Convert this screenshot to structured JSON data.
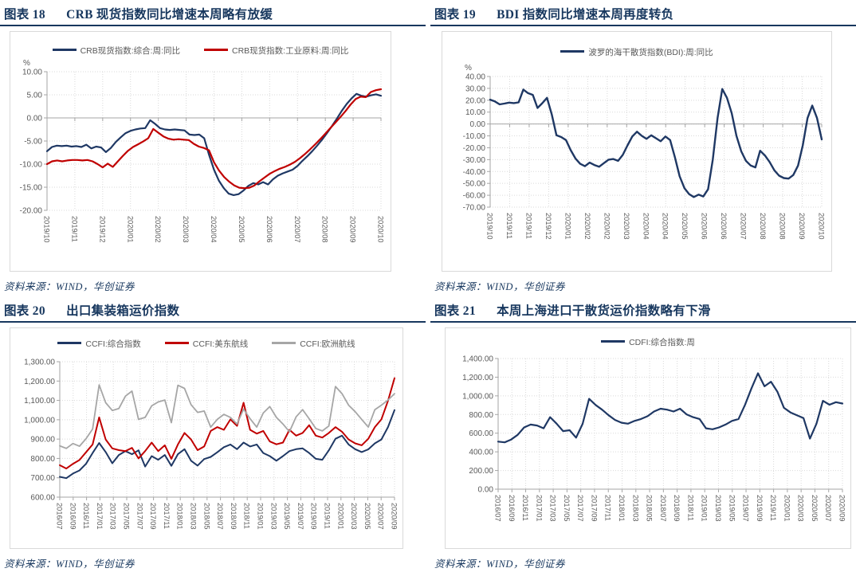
{
  "colors": {
    "navy": "#1f3864",
    "red": "#c00000",
    "gray": "#a6a6a6",
    "title": "#17375e",
    "axis_text": "#595959",
    "grid": "#d9d9d9",
    "box_border": "#d9d9d9"
  },
  "chart_data": [
    {
      "type": "line",
      "figure_label": "图表 18",
      "caption": "CRB 现货指数同比增速本周略有放缓",
      "source": "资料来源：WIND，华创证券",
      "unit": "%",
      "ylim": [
        -20,
        10
      ],
      "zero_axis": true,
      "grid": true,
      "legend_position": "top",
      "ytick_vals": [
        10,
        5,
        0,
        -5,
        -10,
        -15,
        -20
      ],
      "ytick_labels": [
        "10.00",
        "5.00",
        "0.00",
        "-5.00",
        "-10.00",
        "-15.00",
        "-20.00"
      ],
      "xticks": [
        "2019/10",
        "2019/11",
        "2019/12",
        "2020/01",
        "2020/02",
        "2020/03",
        "2020/04",
        "2020/05",
        "2020/06",
        "2020/07",
        "2020/08",
        "2020/09",
        "2020/10"
      ],
      "series": [
        {
          "name": "CRB现货指数:综合:周:同比",
          "color": "navy",
          "values": [
            -7.2,
            -6.3,
            -6.0,
            -6.1,
            -6.0,
            -6.2,
            -6.1,
            -6.3,
            -5.8,
            -6.6,
            -6.2,
            -6.4,
            -7.4,
            -6.5,
            -5.2,
            -4.2,
            -3.3,
            -2.8,
            -2.5,
            -2.3,
            -2.2,
            -0.5,
            -1.3,
            -2.2,
            -2.5,
            -2.6,
            -2.5,
            -2.6,
            -2.7,
            -3.6,
            -3.7,
            -3.6,
            -4.4,
            -8.0,
            -11.2,
            -13.6,
            -15.2,
            -16.4,
            -16.7,
            -16.5,
            -15.7,
            -14.7,
            -14.1,
            -14.4,
            -13.9,
            -14.4,
            -13.3,
            -12.5,
            -12.0,
            -11.6,
            -11.2,
            -10.4,
            -9.3,
            -8.3,
            -7.2,
            -6.0,
            -4.7,
            -3.3,
            -1.8,
            -0.2,
            1.5,
            3.0,
            4.2,
            5.2,
            4.8,
            4.6,
            4.9,
            5.1,
            4.8
          ]
        },
        {
          "name": "CRB现货指数:工业原料:周:同比",
          "color": "red",
          "values": [
            -10.0,
            -9.4,
            -9.2,
            -9.4,
            -9.2,
            -9.1,
            -9.1,
            -9.2,
            -9.1,
            -9.4,
            -10.0,
            -10.7,
            -9.9,
            -10.6,
            -9.4,
            -8.2,
            -7.1,
            -6.3,
            -5.7,
            -5.1,
            -4.4,
            -2.4,
            -3.2,
            -4.0,
            -4.5,
            -4.7,
            -4.6,
            -4.7,
            -4.8,
            -5.6,
            -6.2,
            -6.5,
            -7.0,
            -9.6,
            -11.4,
            -12.8,
            -13.8,
            -14.6,
            -15.1,
            -15.2,
            -15.1,
            -14.6,
            -13.7,
            -12.9,
            -12.1,
            -11.5,
            -11.0,
            -10.6,
            -10.1,
            -9.5,
            -8.7,
            -7.8,
            -6.8,
            -5.7,
            -4.6,
            -3.4,
            -2.2,
            -1.0,
            0.2,
            1.5,
            2.9,
            4.1,
            4.6,
            4.5,
            5.6,
            6.0,
            6.2
          ]
        }
      ]
    },
    {
      "type": "line",
      "figure_label": "图表 19",
      "caption": "BDI 指数同比增速本周再度转负",
      "source": "资料来源：WIND，华创证券",
      "unit": "%",
      "ylim": [
        -70,
        40
      ],
      "zero_axis": true,
      "grid": true,
      "legend_position": "top",
      "ytick_vals": [
        40,
        30,
        20,
        10,
        0,
        -10,
        -20,
        -30,
        -40,
        -50,
        -60,
        -70
      ],
      "ytick_labels": [
        "40.00",
        "30.00",
        "20.00",
        "10.00",
        "0.00",
        "-10.00",
        "-20.00",
        "-30.00",
        "-40.00",
        "-50.00",
        "-60.00",
        "-70.00"
      ],
      "xticks": [
        "2019/10",
        "2019/11",
        "2019/11",
        "2019/12",
        "2020/01",
        "2020/02",
        "2020/02",
        "2020/03",
        "2020/04",
        "2020/04",
        "2020/05",
        "2020/06",
        "2020/06",
        "2020/07",
        "2020/08",
        "2020/08",
        "2020/09",
        "2020/10"
      ],
      "series": [
        {
          "name": "波罗的海干散货指数(BDI):周:同比",
          "color": "navy",
          "values": [
            20.5,
            19.0,
            16.5,
            17.2,
            18.0,
            17.6,
            18.2,
            29.0,
            26.0,
            24.5,
            13.5,
            17.5,
            22.0,
            8.0,
            -9.5,
            -11.0,
            -13.5,
            -22.0,
            -29.0,
            -33.5,
            -35.5,
            -32.5,
            -34.5,
            -36.0,
            -33.0,
            -30.0,
            -29.5,
            -31.0,
            -26.0,
            -18.0,
            -10.5,
            -6.5,
            -10.0,
            -12.5,
            -9.5,
            -12.0,
            -14.5,
            -10.5,
            -13.5,
            -28.0,
            -44.0,
            -54.0,
            -59.0,
            -61.5,
            -59.5,
            -61.0,
            -55.0,
            -30.0,
            5.0,
            29.5,
            22.0,
            9.0,
            -10.0,
            -23.0,
            -31.0,
            -35.0,
            -36.5,
            -22.5,
            -26.5,
            -32.0,
            -39.0,
            -43.5,
            -45.5,
            -46.0,
            -43.0,
            -35.0,
            -18.0,
            5.0,
            15.5,
            5.0,
            -13.0
          ]
        }
      ]
    },
    {
      "type": "line",
      "figure_label": "图表 20",
      "caption": "出口集装箱运价指数",
      "source": "资料来源：WIND，华创证券",
      "unit": "",
      "ylim": [
        600,
        1300
      ],
      "zero_axis": false,
      "grid": true,
      "legend_position": "top",
      "ytick_vals": [
        1300,
        1200,
        1100,
        1000,
        900,
        800,
        700,
        600
      ],
      "ytick_labels": [
        "1,300.00",
        "1,200.00",
        "1,100.00",
        "1,000.00",
        "900.00",
        "800.00",
        "700.00",
        "600.00"
      ],
      "xticks": [
        "2016/07",
        "2016/09",
        "2016/11",
        "2017/01",
        "2017/03",
        "2017/05",
        "2017/07",
        "2017/09",
        "2017/11",
        "2018/01",
        "2018/03",
        "2018/05",
        "2018/07",
        "2018/09",
        "2018/11",
        "2019/01",
        "2019/03",
        "2019/05",
        "2019/07",
        "2019/09",
        "2019/11",
        "2020/01",
        "2020/03",
        "2020/05",
        "2020/07",
        "2020/09"
      ],
      "series": [
        {
          "name": "CCFI:综合指数",
          "color": "navy",
          "values": [
            705,
            698,
            722,
            738,
            772,
            828,
            880,
            833,
            775,
            818,
            838,
            822,
            842,
            758,
            812,
            793,
            818,
            762,
            822,
            848,
            788,
            763,
            797,
            808,
            832,
            858,
            872,
            848,
            882,
            862,
            872,
            828,
            812,
            788,
            812,
            838,
            848,
            852,
            828,
            798,
            793,
            842,
            902,
            918,
            872,
            848,
            833,
            847,
            878,
            898,
            962,
            1050
          ]
        },
        {
          "name": "CCFI:美东航线",
          "color": "red",
          "values": [
            765,
            748,
            772,
            792,
            832,
            872,
            1012,
            898,
            852,
            843,
            838,
            855,
            800,
            838,
            882,
            838,
            868,
            798,
            872,
            932,
            898,
            843,
            862,
            942,
            962,
            948,
            1002,
            968,
            1088,
            948,
            928,
            942,
            888,
            873,
            882,
            948,
            918,
            932,
            972,
            918,
            908,
            932,
            962,
            938,
            898,
            878,
            868,
            902,
            962,
            1002,
            1098,
            1215
          ]
        },
        {
          "name": "CCFI:欧洲航线",
          "color": "gray",
          "values": [
            865,
            852,
            877,
            863,
            902,
            952,
            1180,
            1088,
            1048,
            1058,
            1122,
            1148,
            1002,
            1012,
            1072,
            1092,
            1102,
            985,
            1178,
            1162,
            1078,
            1038,
            1045,
            962,
            1002,
            1028,
            1012,
            978,
            1055,
            1005,
            962,
            1035,
            1068,
            1012,
            978,
            938,
            1015,
            1052,
            1005,
            955,
            942,
            968,
            1172,
            1135,
            1075,
            1042,
            1002,
            962,
            1052,
            1075,
            1102,
            1135
          ]
        }
      ]
    },
    {
      "type": "line",
      "figure_label": "图表 21",
      "caption": "本周上海进口干散货运价指数略有下滑",
      "source": "资料来源：WIND，华创证券",
      "unit": "",
      "ylim": [
        0,
        1400
      ],
      "zero_axis": false,
      "grid": true,
      "legend_position": "top",
      "ytick_vals": [
        1400,
        1200,
        1000,
        800,
        600,
        400,
        200,
        0
      ],
      "ytick_labels": [
        "1,400.00",
        "1,200.00",
        "1,000.00",
        "800.00",
        "600.00",
        "400.00",
        "200.00",
        "0.00"
      ],
      "xticks": [
        "2016/07",
        "2016/09",
        "2016/11",
        "2017/01",
        "2017/03",
        "2017/05",
        "2017/07",
        "2017/09",
        "2017/11",
        "2018/01",
        "2018/03",
        "2018/05",
        "2018/07",
        "2018/09",
        "2018/11",
        "2019/01",
        "2019/03",
        "2019/05",
        "2019/07",
        "2019/09",
        "2019/11",
        "2020/01",
        "2020/03",
        "2020/05",
        "2020/07",
        "2020/09"
      ],
      "series": [
        {
          "name": "CDFI:综合指数:周",
          "color": "navy",
          "values": [
            510,
            502,
            532,
            582,
            662,
            692,
            682,
            652,
            772,
            702,
            622,
            632,
            552,
            700,
            968,
            902,
            852,
            792,
            742,
            712,
            702,
            732,
            752,
            782,
            832,
            862,
            852,
            832,
            862,
            802,
            772,
            752,
            652,
            642,
            662,
            692,
            732,
            752,
            902,
            1082,
            1242,
            1102,
            1152,
            1042,
            872,
            822,
            792,
            762,
            542,
            702,
            947,
            905,
            932,
            918
          ]
        }
      ]
    }
  ]
}
